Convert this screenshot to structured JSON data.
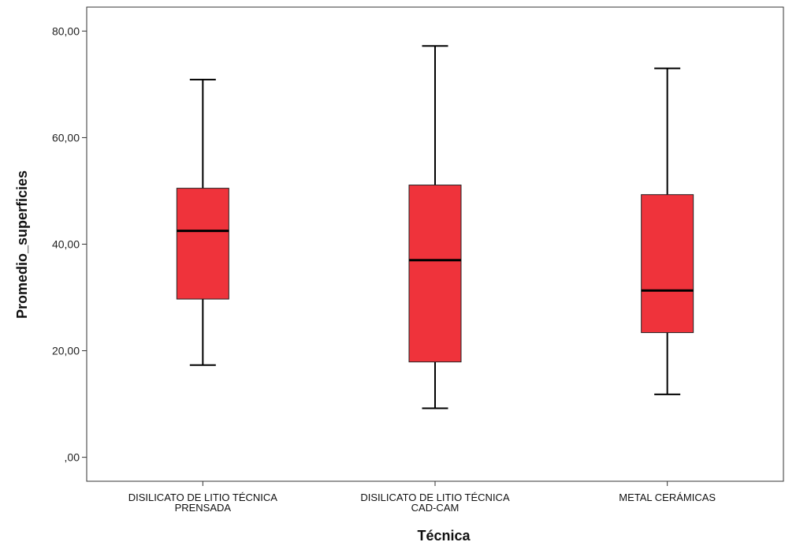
{
  "chart_data": {
    "type": "boxplot",
    "xlabel": "Técnica",
    "ylabel": "Promedio_superficies",
    "ylim": [
      -4.5,
      84.5
    ],
    "yticks": [
      0,
      20,
      40,
      60,
      80
    ],
    "ytick_labels": [
      ",00",
      "20,00",
      "40,00",
      "60,00",
      "80,00"
    ],
    "grid": false,
    "box_color": "#ef333b",
    "line_color": "#000000",
    "categories": [
      [
        "DISILICATO DE LITIO  TÉCNICA",
        "PRENSADA"
      ],
      [
        "DISILICATO DE LITIO TÉCNICA",
        "CAD-CAM"
      ],
      [
        "METAL CERÁMICAS"
      ]
    ],
    "boxes": [
      {
        "min": 17.3,
        "q1": 29.7,
        "median": 42.5,
        "q3": 50.5,
        "max": 70.9
      },
      {
        "min": 9.2,
        "q1": 17.9,
        "median": 37.0,
        "q3": 51.1,
        "max": 77.2
      },
      {
        "min": 11.8,
        "q1": 23.4,
        "median": 31.3,
        "q3": 49.3,
        "max": 73.0
      }
    ]
  }
}
